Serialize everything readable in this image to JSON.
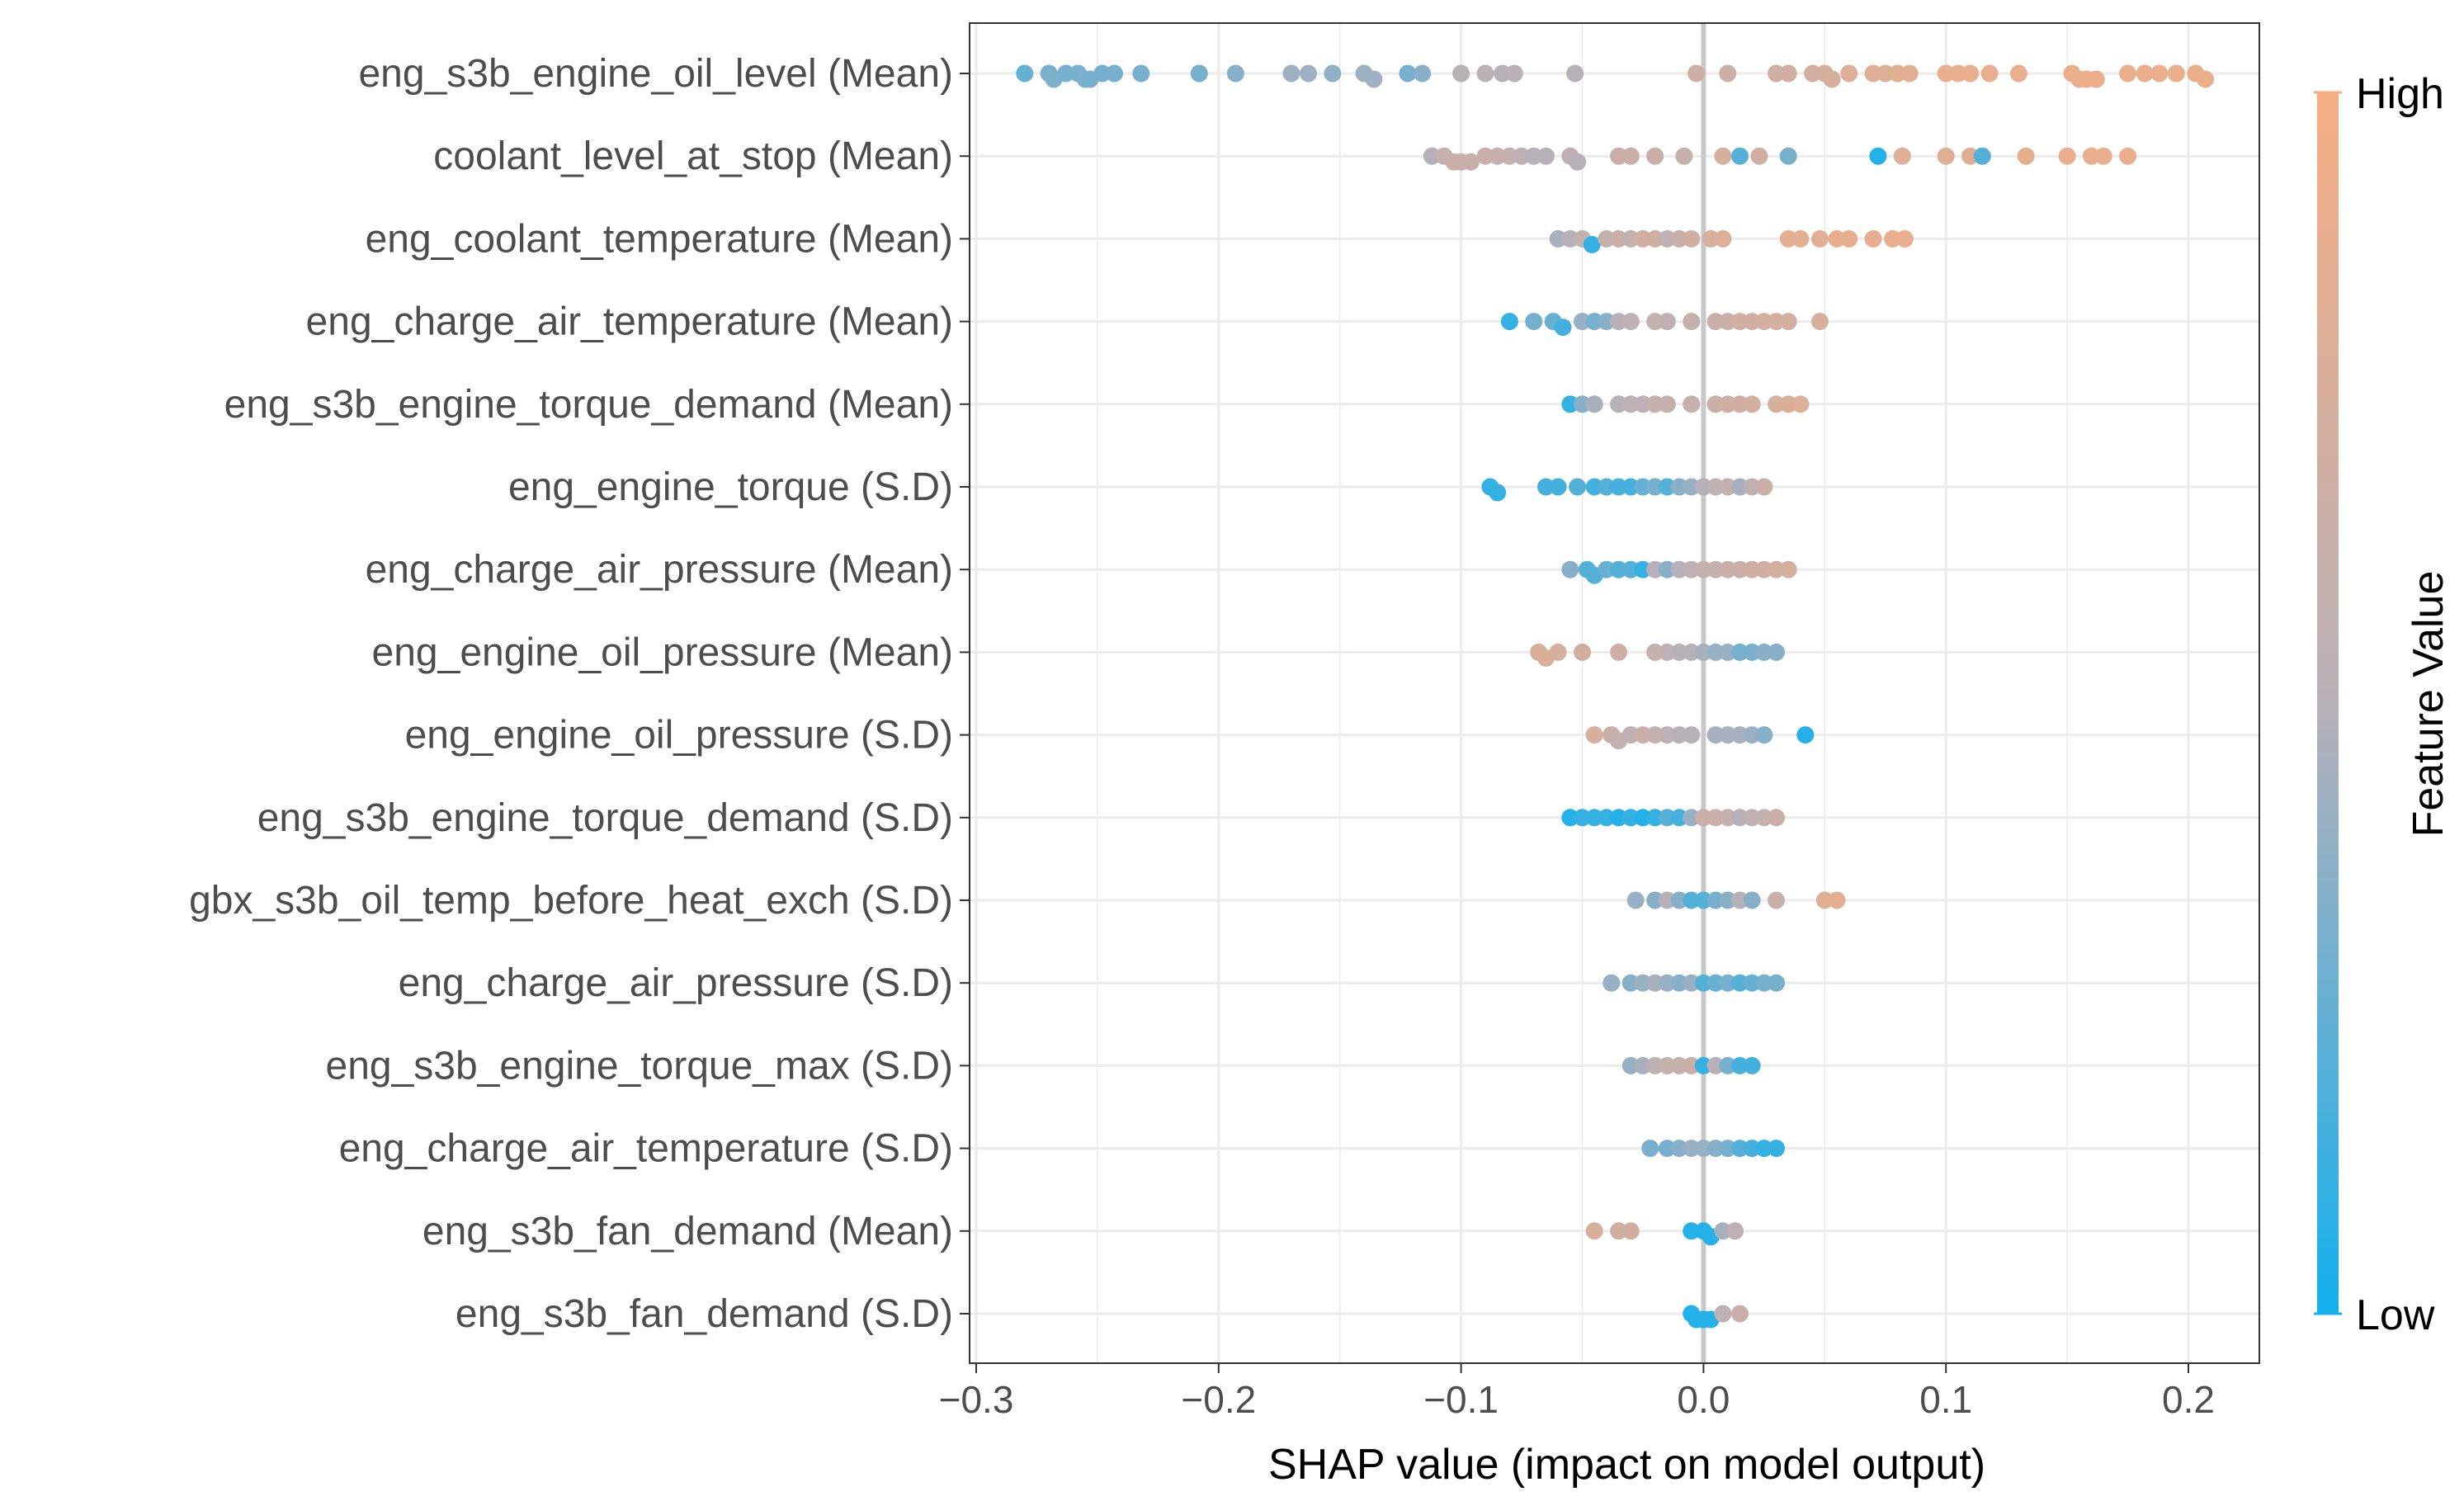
{
  "chart_data": {
    "type": "scatter",
    "subtype": "shap-beeswarm",
    "title": "",
    "xlabel": "SHAP value (impact on model output)",
    "xlim": [
      -0.3,
      0.23
    ],
    "xticks": [
      -0.3,
      -0.2,
      -0.1,
      0.0,
      0.1,
      0.2
    ],
    "xtick_labels": [
      "−0.3",
      "−0.2",
      "−0.1",
      "0.0",
      "0.1",
      "0.2"
    ],
    "grid": true,
    "zero_line": 0.0,
    "colorbar": {
      "title": "Feature Value",
      "high_label": "High",
      "low_label": "Low",
      "high_color": "#F5AE82",
      "mid_color": "#B8B0B8",
      "low_color": "#13B0EE"
    },
    "features": [
      {
        "label": "eng_s3b_engine_oil_level (Mean)",
        "points": [
          [
            -0.28,
            0.25
          ],
          [
            -0.27,
            0.3
          ],
          [
            -0.268,
            0.32
          ],
          [
            -0.263,
            0.3
          ],
          [
            -0.258,
            0.3
          ],
          [
            -0.255,
            0.32
          ],
          [
            -0.253,
            0.3
          ],
          [
            -0.248,
            0.3
          ],
          [
            -0.243,
            0.3
          ],
          [
            -0.232,
            0.3
          ],
          [
            -0.208,
            0.3
          ],
          [
            -0.193,
            0.35
          ],
          [
            -0.17,
            0.42
          ],
          [
            -0.163,
            0.42
          ],
          [
            -0.153,
            0.38
          ],
          [
            -0.14,
            0.42
          ],
          [
            -0.136,
            0.42
          ],
          [
            -0.122,
            0.3
          ],
          [
            -0.116,
            0.35
          ],
          [
            -0.1,
            0.52
          ],
          [
            -0.09,
            0.52
          ],
          [
            -0.083,
            0.5
          ],
          [
            -0.078,
            0.52
          ],
          [
            -0.053,
            0.5
          ],
          [
            -0.003,
            0.68
          ],
          [
            0.01,
            0.68
          ],
          [
            0.03,
            0.7
          ],
          [
            0.035,
            0.7
          ],
          [
            0.045,
            0.72
          ],
          [
            0.05,
            0.72
          ],
          [
            0.053,
            0.75
          ],
          [
            0.06,
            0.8
          ],
          [
            0.07,
            0.8
          ],
          [
            0.075,
            0.8
          ],
          [
            0.08,
            0.85
          ],
          [
            0.085,
            0.85
          ],
          [
            0.1,
            0.9
          ],
          [
            0.105,
            0.9
          ],
          [
            0.11,
            0.9
          ],
          [
            0.118,
            0.9
          ],
          [
            0.13,
            0.9
          ],
          [
            0.152,
            0.92
          ],
          [
            0.155,
            0.92
          ],
          [
            0.158,
            0.92
          ],
          [
            0.162,
            0.92
          ],
          [
            0.175,
            0.92
          ],
          [
            0.182,
            0.92
          ],
          [
            0.188,
            0.92
          ],
          [
            0.195,
            0.92
          ],
          [
            0.203,
            0.92
          ],
          [
            0.207,
            0.92
          ]
        ]
      },
      {
        "label": "coolant_level_at_stop (Mean)",
        "points": [
          [
            -0.112,
            0.5
          ],
          [
            -0.107,
            0.6
          ],
          [
            -0.103,
            0.65
          ],
          [
            -0.1,
            0.65
          ],
          [
            -0.096,
            0.62
          ],
          [
            -0.09,
            0.65
          ],
          [
            -0.085,
            0.62
          ],
          [
            -0.08,
            0.6
          ],
          [
            -0.075,
            0.55
          ],
          [
            -0.07,
            0.5
          ],
          [
            -0.065,
            0.5
          ],
          [
            -0.055,
            0.55
          ],
          [
            -0.052,
            0.5
          ],
          [
            -0.035,
            0.65
          ],
          [
            -0.03,
            0.65
          ],
          [
            -0.02,
            0.65
          ],
          [
            -0.008,
            0.6
          ],
          [
            0.008,
            0.75
          ],
          [
            0.015,
            0.2
          ],
          [
            0.023,
            0.7
          ],
          [
            0.035,
            0.3
          ],
          [
            0.072,
            0.05
          ],
          [
            0.082,
            0.82
          ],
          [
            0.1,
            0.82
          ],
          [
            0.11,
            0.82
          ],
          [
            0.115,
            0.2
          ],
          [
            0.133,
            0.88
          ],
          [
            0.15,
            0.9
          ],
          [
            0.16,
            0.9
          ],
          [
            0.165,
            0.9
          ],
          [
            0.175,
            0.9
          ]
        ]
      },
      {
        "label": "eng_coolant_temperature (Mean)",
        "points": [
          [
            -0.06,
            0.45
          ],
          [
            -0.055,
            0.5
          ],
          [
            -0.05,
            0.6
          ],
          [
            -0.046,
            0.1
          ],
          [
            -0.04,
            0.6
          ],
          [
            -0.035,
            0.65
          ],
          [
            -0.03,
            0.6
          ],
          [
            -0.025,
            0.7
          ],
          [
            -0.02,
            0.7
          ],
          [
            -0.015,
            0.55
          ],
          [
            -0.01,
            0.65
          ],
          [
            -0.005,
            0.7
          ],
          [
            0.003,
            0.75
          ],
          [
            0.008,
            0.8
          ],
          [
            0.035,
            0.85
          ],
          [
            0.04,
            0.85
          ],
          [
            0.048,
            0.85
          ],
          [
            0.055,
            0.88
          ],
          [
            0.06,
            0.88
          ],
          [
            0.07,
            0.88
          ],
          [
            0.078,
            0.9
          ],
          [
            0.083,
            0.9
          ]
        ]
      },
      {
        "label": "eng_charge_air_temperature (Mean)",
        "points": [
          [
            -0.08,
            0.1
          ],
          [
            -0.07,
            0.3
          ],
          [
            -0.062,
            0.25
          ],
          [
            -0.058,
            0.15
          ],
          [
            -0.05,
            0.4
          ],
          [
            -0.045,
            0.3
          ],
          [
            -0.04,
            0.35
          ],
          [
            -0.035,
            0.5
          ],
          [
            -0.03,
            0.55
          ],
          [
            -0.02,
            0.6
          ],
          [
            -0.015,
            0.55
          ],
          [
            -0.005,
            0.6
          ],
          [
            0.005,
            0.65
          ],
          [
            0.01,
            0.65
          ],
          [
            0.015,
            0.7
          ],
          [
            0.02,
            0.7
          ],
          [
            0.025,
            0.72
          ],
          [
            0.03,
            0.72
          ],
          [
            0.035,
            0.72
          ],
          [
            0.048,
            0.75
          ]
        ]
      },
      {
        "label": "eng_s3b_engine_torque_demand (Mean)",
        "points": [
          [
            -0.055,
            0.1
          ],
          [
            -0.05,
            0.35
          ],
          [
            -0.045,
            0.45
          ],
          [
            -0.035,
            0.5
          ],
          [
            -0.03,
            0.55
          ],
          [
            -0.025,
            0.55
          ],
          [
            -0.02,
            0.6
          ],
          [
            -0.015,
            0.6
          ],
          [
            -0.005,
            0.6
          ],
          [
            0.005,
            0.65
          ],
          [
            0.01,
            0.7
          ],
          [
            0.015,
            0.7
          ],
          [
            0.02,
            0.72
          ],
          [
            0.03,
            0.75
          ],
          [
            0.035,
            0.78
          ],
          [
            0.04,
            0.8
          ]
        ]
      },
      {
        "label": "eng_engine_torque (S.D)",
        "points": [
          [
            -0.088,
            0.1
          ],
          [
            -0.085,
            0.1
          ],
          [
            -0.065,
            0.15
          ],
          [
            -0.06,
            0.15
          ],
          [
            -0.052,
            0.2
          ],
          [
            -0.045,
            0.15
          ],
          [
            -0.04,
            0.2
          ],
          [
            -0.035,
            0.15
          ],
          [
            -0.03,
            0.15
          ],
          [
            -0.025,
            0.25
          ],
          [
            -0.02,
            0.3
          ],
          [
            -0.015,
            0.2
          ],
          [
            -0.01,
            0.35
          ],
          [
            -0.005,
            0.4
          ],
          [
            0.0,
            0.5
          ],
          [
            0.005,
            0.55
          ],
          [
            0.01,
            0.6
          ],
          [
            0.015,
            0.45
          ],
          [
            0.02,
            0.55
          ],
          [
            0.025,
            0.65
          ]
        ]
      },
      {
        "label": "eng_charge_air_pressure (Mean)",
        "points": [
          [
            -0.055,
            0.35
          ],
          [
            -0.048,
            0.2
          ],
          [
            -0.045,
            0.2
          ],
          [
            -0.04,
            0.25
          ],
          [
            -0.035,
            0.2
          ],
          [
            -0.03,
            0.2
          ],
          [
            -0.025,
            0.1
          ],
          [
            -0.02,
            0.5
          ],
          [
            -0.015,
            0.35
          ],
          [
            -0.01,
            0.5
          ],
          [
            -0.005,
            0.55
          ],
          [
            0.0,
            0.6
          ],
          [
            0.005,
            0.6
          ],
          [
            0.01,
            0.65
          ],
          [
            0.015,
            0.65
          ],
          [
            0.02,
            0.7
          ],
          [
            0.025,
            0.7
          ],
          [
            0.03,
            0.72
          ],
          [
            0.035,
            0.72
          ]
        ]
      },
      {
        "label": "eng_engine_oil_pressure (Mean)",
        "points": [
          [
            -0.068,
            0.75
          ],
          [
            -0.065,
            0.78
          ],
          [
            -0.06,
            0.75
          ],
          [
            -0.05,
            0.7
          ],
          [
            -0.035,
            0.68
          ],
          [
            -0.02,
            0.6
          ],
          [
            -0.015,
            0.55
          ],
          [
            -0.01,
            0.5
          ],
          [
            -0.005,
            0.5
          ],
          [
            0.0,
            0.45
          ],
          [
            0.005,
            0.4
          ],
          [
            0.01,
            0.4
          ],
          [
            0.015,
            0.3
          ],
          [
            0.02,
            0.3
          ],
          [
            0.025,
            0.35
          ],
          [
            0.03,
            0.35
          ]
        ]
      },
      {
        "label": "eng_engine_oil_pressure (S.D)",
        "points": [
          [
            -0.045,
            0.75
          ],
          [
            -0.038,
            0.65
          ],
          [
            -0.035,
            0.6
          ],
          [
            -0.03,
            0.55
          ],
          [
            -0.025,
            0.65
          ],
          [
            -0.02,
            0.6
          ],
          [
            -0.015,
            0.55
          ],
          [
            -0.01,
            0.5
          ],
          [
            -0.005,
            0.5
          ],
          [
            0.005,
            0.45
          ],
          [
            0.01,
            0.45
          ],
          [
            0.015,
            0.45
          ],
          [
            0.02,
            0.4
          ],
          [
            0.025,
            0.35
          ],
          [
            0.042,
            0.05
          ]
        ]
      },
      {
        "label": "eng_s3b_engine_torque_demand (S.D)",
        "points": [
          [
            -0.055,
            0.05
          ],
          [
            -0.05,
            0.1
          ],
          [
            -0.045,
            0.1
          ],
          [
            -0.04,
            0.1
          ],
          [
            -0.035,
            0.05
          ],
          [
            -0.03,
            0.1
          ],
          [
            -0.025,
            0.05
          ],
          [
            -0.02,
            0.1
          ],
          [
            -0.015,
            0.2
          ],
          [
            -0.01,
            0.15
          ],
          [
            -0.005,
            0.4
          ],
          [
            0.0,
            0.65
          ],
          [
            0.005,
            0.65
          ],
          [
            0.01,
            0.6
          ],
          [
            0.015,
            0.5
          ],
          [
            0.02,
            0.55
          ],
          [
            0.025,
            0.6
          ],
          [
            0.03,
            0.65
          ]
        ]
      },
      {
        "label": "gbx_s3b_oil_temp_before_heat_exch (S.D)",
        "points": [
          [
            -0.028,
            0.4
          ],
          [
            -0.02,
            0.35
          ],
          [
            -0.015,
            0.5
          ],
          [
            -0.01,
            0.35
          ],
          [
            -0.005,
            0.2
          ],
          [
            0.0,
            0.2
          ],
          [
            0.005,
            0.3
          ],
          [
            0.01,
            0.35
          ],
          [
            0.015,
            0.5
          ],
          [
            0.02,
            0.35
          ],
          [
            0.03,
            0.65
          ],
          [
            0.05,
            0.82
          ],
          [
            0.055,
            0.85
          ]
        ]
      },
      {
        "label": "eng_charge_air_pressure (S.D)",
        "points": [
          [
            -0.038,
            0.4
          ],
          [
            -0.03,
            0.35
          ],
          [
            -0.025,
            0.4
          ],
          [
            -0.02,
            0.45
          ],
          [
            -0.015,
            0.4
          ],
          [
            -0.01,
            0.35
          ],
          [
            -0.005,
            0.4
          ],
          [
            0.0,
            0.2
          ],
          [
            0.005,
            0.25
          ],
          [
            0.01,
            0.3
          ],
          [
            0.015,
            0.2
          ],
          [
            0.02,
            0.25
          ],
          [
            0.025,
            0.3
          ],
          [
            0.03,
            0.3
          ]
        ]
      },
      {
        "label": "eng_s3b_engine_torque_max (S.D)",
        "points": [
          [
            -0.03,
            0.4
          ],
          [
            -0.025,
            0.45
          ],
          [
            -0.02,
            0.55
          ],
          [
            -0.015,
            0.6
          ],
          [
            -0.01,
            0.6
          ],
          [
            -0.005,
            0.65
          ],
          [
            0.0,
            0.1
          ],
          [
            0.005,
            0.5
          ],
          [
            0.01,
            0.3
          ],
          [
            0.015,
            0.15
          ],
          [
            0.02,
            0.15
          ]
        ]
      },
      {
        "label": "eng_charge_air_temperature (S.D)",
        "points": [
          [
            -0.022,
            0.3
          ],
          [
            -0.015,
            0.3
          ],
          [
            -0.01,
            0.35
          ],
          [
            -0.005,
            0.4
          ],
          [
            0.0,
            0.4
          ],
          [
            0.005,
            0.35
          ],
          [
            0.01,
            0.3
          ],
          [
            0.015,
            0.2
          ],
          [
            0.02,
            0.15
          ],
          [
            0.025,
            0.1
          ],
          [
            0.03,
            0.1
          ]
        ]
      },
      {
        "label": "eng_s3b_fan_demand (Mean)",
        "points": [
          [
            -0.045,
            0.75
          ],
          [
            -0.035,
            0.7
          ],
          [
            -0.03,
            0.7
          ],
          [
            -0.005,
            0.05
          ],
          [
            0.0,
            0.05
          ],
          [
            0.003,
            0.05
          ],
          [
            0.008,
            0.45
          ],
          [
            0.013,
            0.55
          ]
        ]
      },
      {
        "label": "eng_s3b_fan_demand (S.D)",
        "points": [
          [
            -0.005,
            0.05
          ],
          [
            -0.003,
            0.05
          ],
          [
            0.0,
            0.05
          ],
          [
            0.003,
            0.05
          ],
          [
            0.008,
            0.55
          ],
          [
            0.015,
            0.65
          ]
        ]
      }
    ]
  }
}
